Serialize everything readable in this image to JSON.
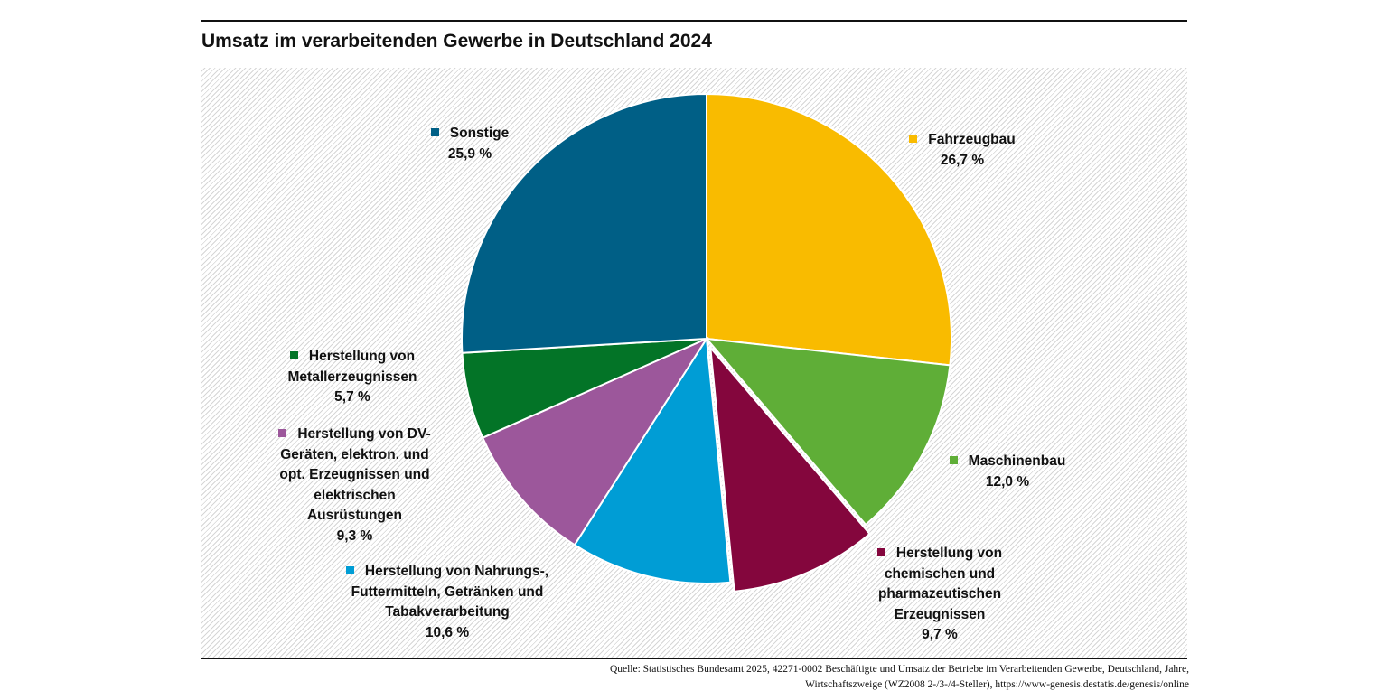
{
  "chart_data": {
    "type": "pie",
    "title": "Umsatz im verarbeitenden Gewerbe in Deutschland 2024",
    "start_angle": "top, clockwise",
    "slices": [
      {
        "name": "Fahrzeugbau",
        "value": 26.7,
        "label": "26,7 %",
        "color": "#f9bb00",
        "exploded": false
      },
      {
        "name": "Maschinenbau",
        "value": 12.0,
        "label": "12,0 %",
        "color": "#5fae37",
        "exploded": false
      },
      {
        "name": "Herstellung von chemischen und pharmazeutischen Erzeugnissen",
        "value": 9.7,
        "label": "9,7 %",
        "color": "#84063d",
        "exploded": true
      },
      {
        "name": "Herstellung von Nahrungs-, Futtermitteln, Getränken und Tabakverarbeitung",
        "value": 10.6,
        "label": "10,6 %",
        "color": "#009dd5",
        "exploded": false
      },
      {
        "name": "Herstellung von DV-Geräten, elektron. und opt. Erzeugnissen und elektrischen Ausrüstungen",
        "value": 9.3,
        "label": "9,3 %",
        "color": "#9c579b",
        "exploded": false
      },
      {
        "name": "Herstellung von Metallerzeugnissen",
        "value": 5.7,
        "label": "5,7 %",
        "color": "#037427",
        "exploded": false
      },
      {
        "name": "Sonstige",
        "value": 25.9,
        "label": "25,9 %",
        "color": "#005f86",
        "exploded": false
      }
    ],
    "source": "Quelle: Statistisches Bundesamt 2025, 42271-0002 Beschäftigte und Umsatz der Betriebe im Verarbeitenden Gewerbe, Deutschland, Jahre, Wirtschaftszweige (WZ2008 2-/3-/4-Steller), https://www-genesis.destatis.de/genesis/online"
  }
}
